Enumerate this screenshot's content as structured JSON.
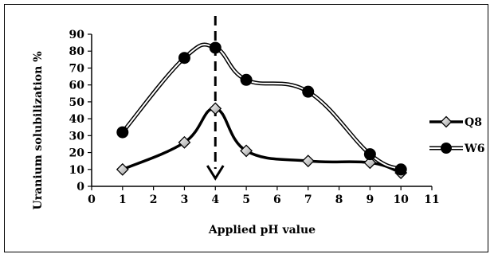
{
  "chart_data": {
    "type": "line",
    "xlabel": "Applied pH value",
    "ylabel": "Uranium solubilization %",
    "xlim": [
      0,
      11
    ],
    "ylim": [
      0,
      90
    ],
    "x_ticks": [
      0,
      1,
      2,
      3,
      4,
      5,
      6,
      7,
      8,
      9,
      10,
      11
    ],
    "y_ticks": [
      0,
      10,
      20,
      30,
      40,
      50,
      60,
      70,
      80,
      90
    ],
    "grid": false,
    "legend_position": "right",
    "marker_line": {
      "x": 4,
      "style": "dashed-arrow-down"
    },
    "series": [
      {
        "name": "Q8",
        "marker": "diamond",
        "line_style": "solid-thick-black",
        "x": [
          1,
          3,
          4,
          5,
          7,
          9,
          10
        ],
        "y": [
          10,
          26,
          46,
          21,
          15,
          14,
          8
        ]
      },
      {
        "name": "W6",
        "marker": "circle",
        "line_style": "double-outline",
        "x": [
          1,
          3,
          4,
          5,
          7,
          9,
          10
        ],
        "y": [
          32,
          76,
          82,
          63,
          56,
          19,
          10
        ]
      }
    ]
  }
}
